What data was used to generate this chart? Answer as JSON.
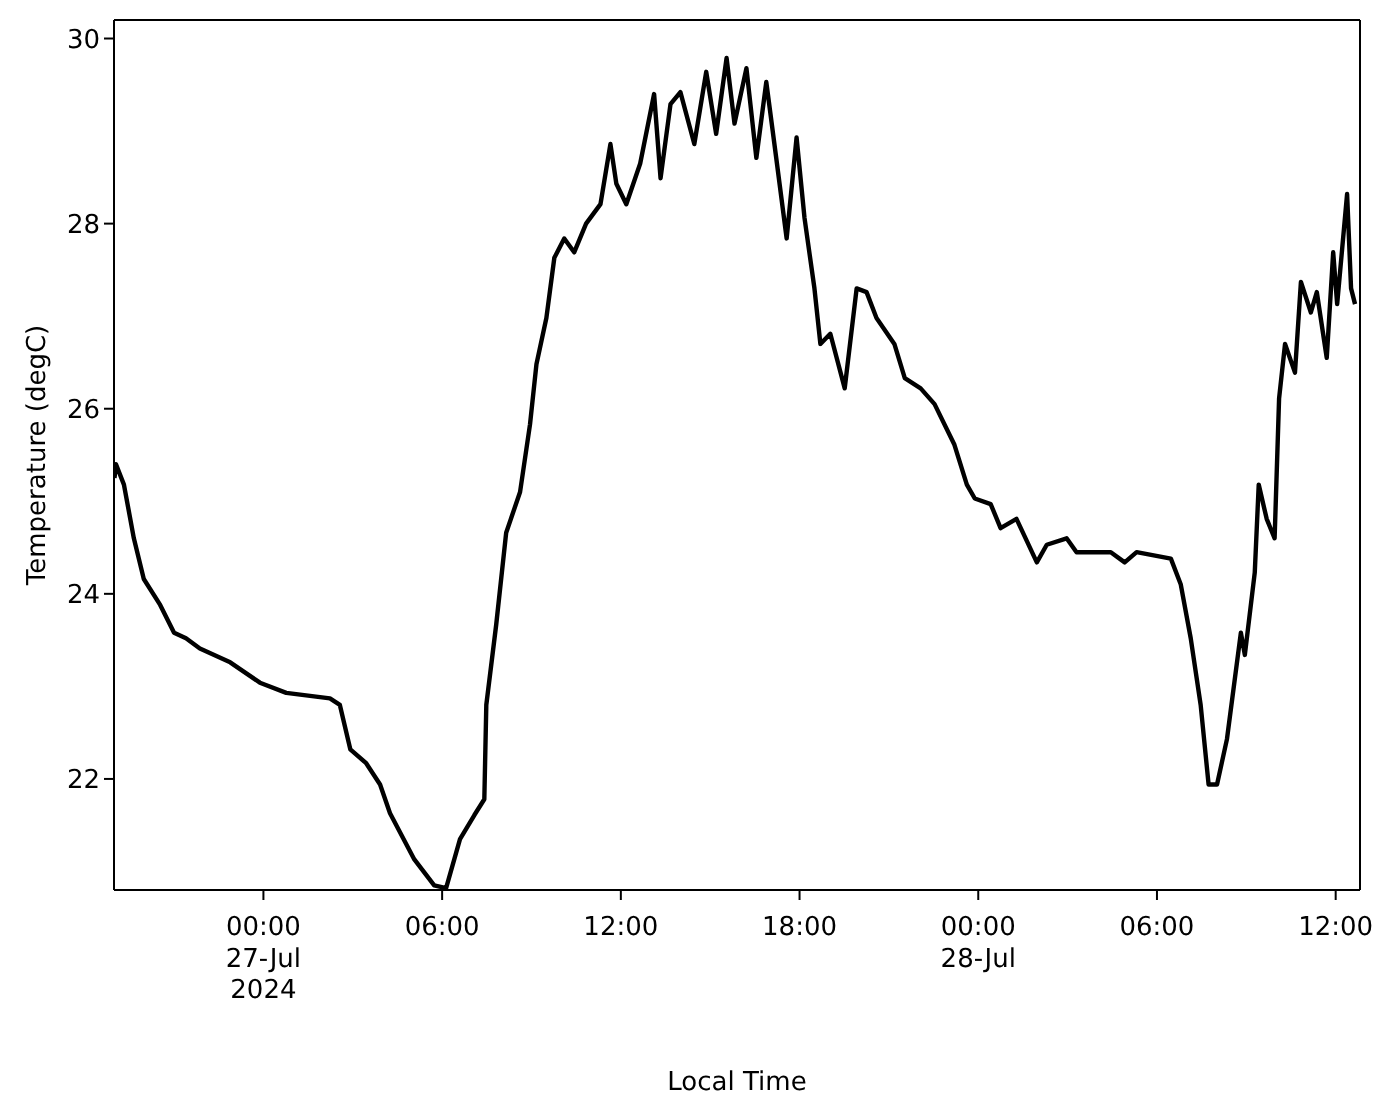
{
  "chart_data": {
    "type": "line",
    "xlabel": "Local Time",
    "ylabel": "Temperature (degC)",
    "xlim": [
      "2024-07-26T18:59",
      "2024-07-28T12:49"
    ],
    "xticks": [
      {
        "value": "2024-07-27T00:00",
        "label": "00:00\n27-Jul\n2024"
      },
      {
        "value": "2024-07-27T06:00",
        "label": "06:00"
      },
      {
        "value": "2024-07-27T12:00",
        "label": "12:00"
      },
      {
        "value": "2024-07-27T18:00",
        "label": "18:00"
      },
      {
        "value": "2024-07-28T00:00",
        "label": "00:00\n28-Jul"
      },
      {
        "value": "2024-07-28T06:00",
        "label": "06:00"
      },
      {
        "value": "2024-07-28T12:00",
        "label": "12:00"
      }
    ],
    "ylim": [
      20.8,
      30.2
    ],
    "yticks": [
      22,
      24,
      26,
      28,
      30
    ],
    "marker": "none",
    "line_style": "solid",
    "x": [
      "2024-07-26T19:00",
      "2024-07-26T19:03",
      "2024-07-26T19:19",
      "2024-07-26T19:39",
      "2024-07-26T19:59",
      "2024-07-26T20:32",
      "2024-07-26T21:00",
      "2024-07-26T21:24",
      "2024-07-26T21:52",
      "2024-07-26T22:53",
      "2024-07-26T23:53",
      "2024-07-27T00:46",
      "2024-07-27T02:14",
      "2024-07-27T02:34",
      "2024-07-27T02:55",
      "2024-07-27T03:27",
      "2024-07-27T03:55",
      "2024-07-27T04:15",
      "2024-07-27T05:04",
      "2024-07-27T05:44",
      "2024-07-27T06:08",
      "2024-07-27T06:36",
      "2024-07-27T07:05",
      "2024-07-27T07:25",
      "2024-07-27T07:29",
      "2024-07-27T07:49",
      "2024-07-27T08:09",
      "2024-07-27T08:37",
      "2024-07-27T08:57",
      "2024-07-27T09:10",
      "2024-07-27T09:30",
      "2024-07-27T09:46",
      "2024-07-27T10:06",
      "2024-07-27T10:26",
      "2024-07-27T10:50",
      "2024-07-27T11:19",
      "2024-07-27T11:39",
      "2024-07-27T11:51",
      "2024-07-27T12:11",
      "2024-07-27T12:39",
      "2024-07-27T13:07",
      "2024-07-27T13:20",
      "2024-07-27T13:40",
      "2024-07-27T14:00",
      "2024-07-27T14:28",
      "2024-07-27T14:52",
      "2024-07-27T15:12",
      "2024-07-27T15:33",
      "2024-07-27T15:49",
      "2024-07-27T16:13",
      "2024-07-27T16:33",
      "2024-07-27T16:53",
      "2024-07-27T17:13",
      "2024-07-27T17:34",
      "2024-07-27T17:54",
      "2024-07-27T18:10",
      "2024-07-27T18:30",
      "2024-07-27T18:42",
      "2024-07-27T19:02",
      "2024-07-27T19:31",
      "2024-07-27T19:55",
      "2024-07-27T20:15",
      "2024-07-27T20:35",
      "2024-07-27T21:11",
      "2024-07-27T21:32",
      "2024-07-27T22:04",
      "2024-07-27T22:32",
      "2024-07-27T23:12",
      "2024-07-27T23:37",
      "2024-07-27T23:53",
      "2024-07-28T00:25",
      "2024-07-28T00:45",
      "2024-07-28T01:17",
      "2024-07-28T01:58",
      "2024-07-28T02:18",
      "2024-07-28T02:58",
      "2024-07-28T03:18",
      "2024-07-28T04:27",
      "2024-07-28T04:55",
      "2024-07-28T05:19",
      "2024-07-28T06:28",
      "2024-07-28T06:48",
      "2024-07-28T07:08",
      "2024-07-28T07:28",
      "2024-07-28T07:44",
      "2024-07-28T08:01",
      "2024-07-28T08:21",
      "2024-07-28T08:49",
      "2024-07-28T08:57",
      "2024-07-28T09:17",
      "2024-07-28T09:25",
      "2024-07-28T09:41",
      "2024-07-28T09:57",
      "2024-07-28T10:06",
      "2024-07-28T10:18",
      "2024-07-28T10:38",
      "2024-07-28T10:50",
      "2024-07-28T11:10",
      "2024-07-28T11:22",
      "2024-07-28T11:42",
      "2024-07-28T11:55",
      "2024-07-28T12:03",
      "2024-07-28T12:23",
      "2024-07-28T12:31",
      "2024-07-28T12:39"
    ],
    "series": [
      {
        "color": "#000000",
        "values": [
          25.25,
          25.4,
          25.18,
          24.6,
          24.16,
          23.88,
          23.58,
          23.52,
          23.41,
          23.26,
          23.04,
          22.93,
          22.87,
          22.8,
          22.32,
          22.17,
          21.94,
          21.63,
          21.13,
          20.85,
          20.82,
          21.35,
          21.61,
          21.78,
          22.8,
          23.67,
          24.66,
          25.1,
          25.83,
          26.48,
          26.98,
          27.63,
          27.84,
          27.69,
          28.0,
          28.21,
          28.86,
          28.43,
          28.21,
          28.65,
          29.4,
          28.49,
          29.29,
          29.42,
          28.86,
          29.64,
          28.97,
          29.79,
          29.08,
          29.68,
          28.71,
          29.53,
          28.71,
          27.84,
          28.93,
          28.06,
          27.3,
          26.7,
          26.81,
          26.22,
          27.3,
          27.26,
          26.98,
          26.7,
          26.33,
          26.22,
          26.05,
          25.61,
          25.18,
          25.03,
          24.97,
          24.71,
          24.81,
          24.34,
          24.53,
          24.6,
          24.45,
          24.45,
          24.34,
          24.45,
          24.38,
          24.1,
          23.52,
          22.8,
          21.94,
          21.94,
          22.43,
          23.58,
          23.34,
          24.23,
          25.18,
          24.81,
          24.6,
          26.11,
          26.7,
          26.39,
          27.37,
          27.04,
          27.26,
          26.55,
          27.69,
          27.13,
          28.32,
          27.3,
          27.13
        ]
      }
    ]
  }
}
